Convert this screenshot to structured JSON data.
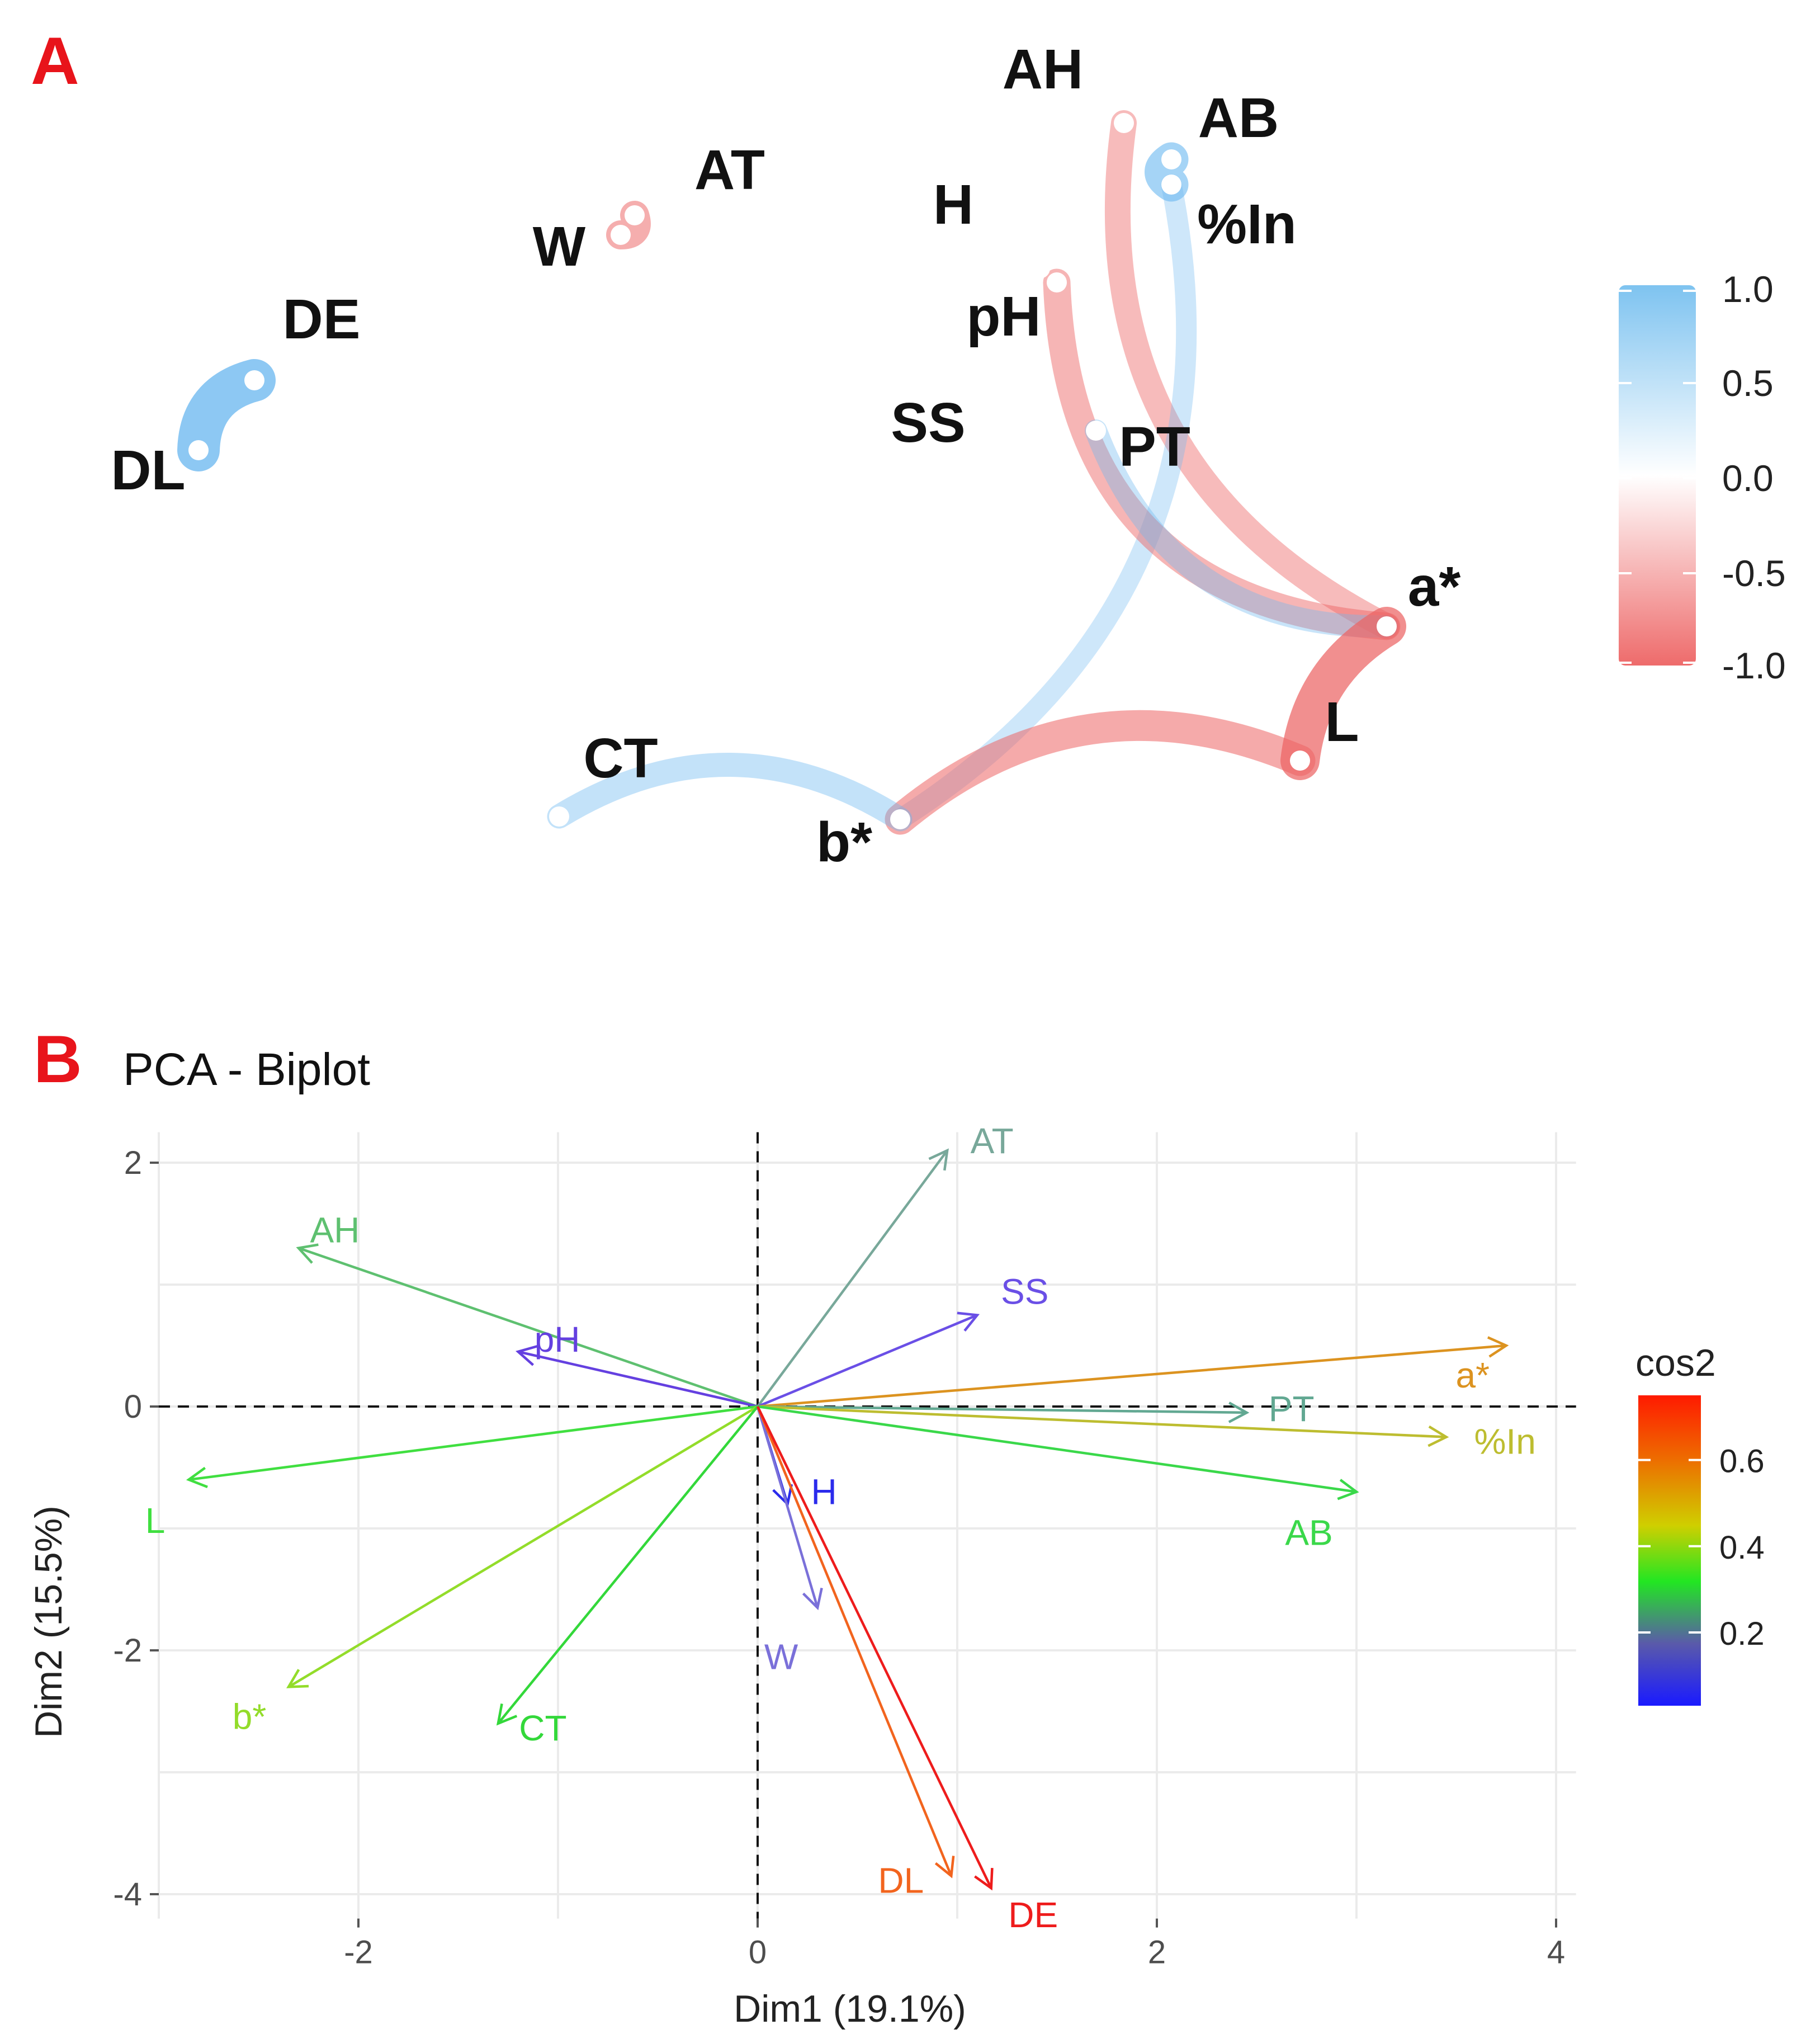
{
  "panel_a": {
    "letter": "A",
    "network": {
      "nodes": [
        {
          "id": "AH",
          "label": "AH"
        },
        {
          "id": "AB",
          "label": "AB"
        },
        {
          "id": "AT",
          "label": "AT"
        },
        {
          "id": "H",
          "label": "H"
        },
        {
          "id": "%In",
          "label": "%In"
        },
        {
          "id": "W",
          "label": "W"
        },
        {
          "id": "DE",
          "label": "DE"
        },
        {
          "id": "pH",
          "label": "pH"
        },
        {
          "id": "SS",
          "label": "SS"
        },
        {
          "id": "PT",
          "label": "PT"
        },
        {
          "id": "DL",
          "label": "DL"
        },
        {
          "id": "a*",
          "label": "a*"
        },
        {
          "id": "L",
          "label": "L"
        },
        {
          "id": "CT",
          "label": "CT"
        },
        {
          "id": "b*",
          "label": "b*"
        }
      ],
      "edges": [
        {
          "from": "DE",
          "to": "DL",
          "r": 0.85
        },
        {
          "from": "W",
          "to": "AT",
          "r": -0.45
        },
        {
          "from": "AH",
          "to": "a*",
          "r": -0.35
        },
        {
          "from": "AB",
          "to": "%In",
          "r": 0.6
        },
        {
          "from": "%In",
          "to": "b*",
          "r": 0.2
        },
        {
          "from": "pH",
          "to": "a*",
          "r": -0.4
        },
        {
          "from": "PT",
          "to": "a*",
          "r": 0.25
        },
        {
          "from": "a*",
          "to": "L",
          "r": -0.75
        },
        {
          "from": "L",
          "to": "b*",
          "r": -0.5
        },
        {
          "from": "b*",
          "to": "CT",
          "r": 0.3
        }
      ]
    },
    "legend": {
      "ticks": [
        "1.0",
        "0.5",
        "0.0",
        "-0.5",
        "-1.0"
      ],
      "colors": {
        "positive": "#7ec3f0",
        "zero": "#ffffff",
        "negative": "#ee6b6b"
      }
    }
  },
  "panel_b": {
    "letter": "B",
    "chart_data": {
      "type": "biplot",
      "title": "PCA - Biplot",
      "xlabel": "Dim1 (19.1%)",
      "ylabel": "Dim2 (15.5%)",
      "xlim": [
        -3.0,
        4.1
      ],
      "ylim": [
        -4.2,
        2.25
      ],
      "x_ticks": [
        {
          "value": -2,
          "label": "-2"
        },
        {
          "value": 0,
          "label": "0"
        },
        {
          "value": 2,
          "label": "2"
        },
        {
          "value": 4,
          "label": "4"
        }
      ],
      "y_ticks": [
        {
          "value": 2,
          "label": "2"
        },
        {
          "value": 0,
          "label": "0"
        },
        {
          "value": -2,
          "label": "-2"
        },
        {
          "value": -4,
          "label": "-4"
        }
      ],
      "variables": [
        {
          "name": "AT",
          "x": 0.95,
          "y": 2.1,
          "color": "#78a89a"
        },
        {
          "name": "SS",
          "x": 1.1,
          "y": 0.75,
          "color": "#6a4fe6"
        },
        {
          "name": "a*",
          "x": 3.75,
          "y": 0.5,
          "color": "#dc9320"
        },
        {
          "name": "PT",
          "x": 2.45,
          "y": -0.05,
          "color": "#62a892"
        },
        {
          "name": "%In",
          "x": 3.45,
          "y": -0.25,
          "color": "#bdbd30"
        },
        {
          "name": "AB",
          "x": 3.0,
          "y": -0.7,
          "color": "#3ad84a"
        },
        {
          "name": "AH",
          "x": -2.3,
          "y": 1.3,
          "color": "#5ec070"
        },
        {
          "name": "pH",
          "x": -1.2,
          "y": 0.45,
          "color": "#6440e0"
        },
        {
          "name": "L",
          "x": -2.85,
          "y": -0.6,
          "color": "#40df40"
        },
        {
          "name": "b*",
          "x": -2.35,
          "y": -2.3,
          "color": "#93dc2a"
        },
        {
          "name": "CT",
          "x": -1.3,
          "y": -2.6,
          "color": "#33d83a"
        },
        {
          "name": "H",
          "x": 0.15,
          "y": -0.8,
          "color": "#2b2bec"
        },
        {
          "name": "W",
          "x": 0.3,
          "y": -1.65,
          "color": "#7a70d9"
        },
        {
          "name": "DL",
          "x": 0.97,
          "y": -3.85,
          "color": "#f2641e"
        },
        {
          "name": "DE",
          "x": 1.17,
          "y": -3.95,
          "color": "#ee1c1c"
        }
      ],
      "legend": {
        "title": "cos2",
        "ticks": [
          {
            "value": 0.6,
            "label": "0.6"
          },
          {
            "value": 0.4,
            "label": "0.4"
          },
          {
            "value": 0.2,
            "label": "0.2"
          }
        ],
        "range": [
          0.03,
          0.75
        ],
        "gradient": [
          "#ff1a00",
          "#ee6a00",
          "#cfcf00",
          "#22e622",
          "#5a5aaa",
          "#1a1aff"
        ]
      }
    }
  }
}
